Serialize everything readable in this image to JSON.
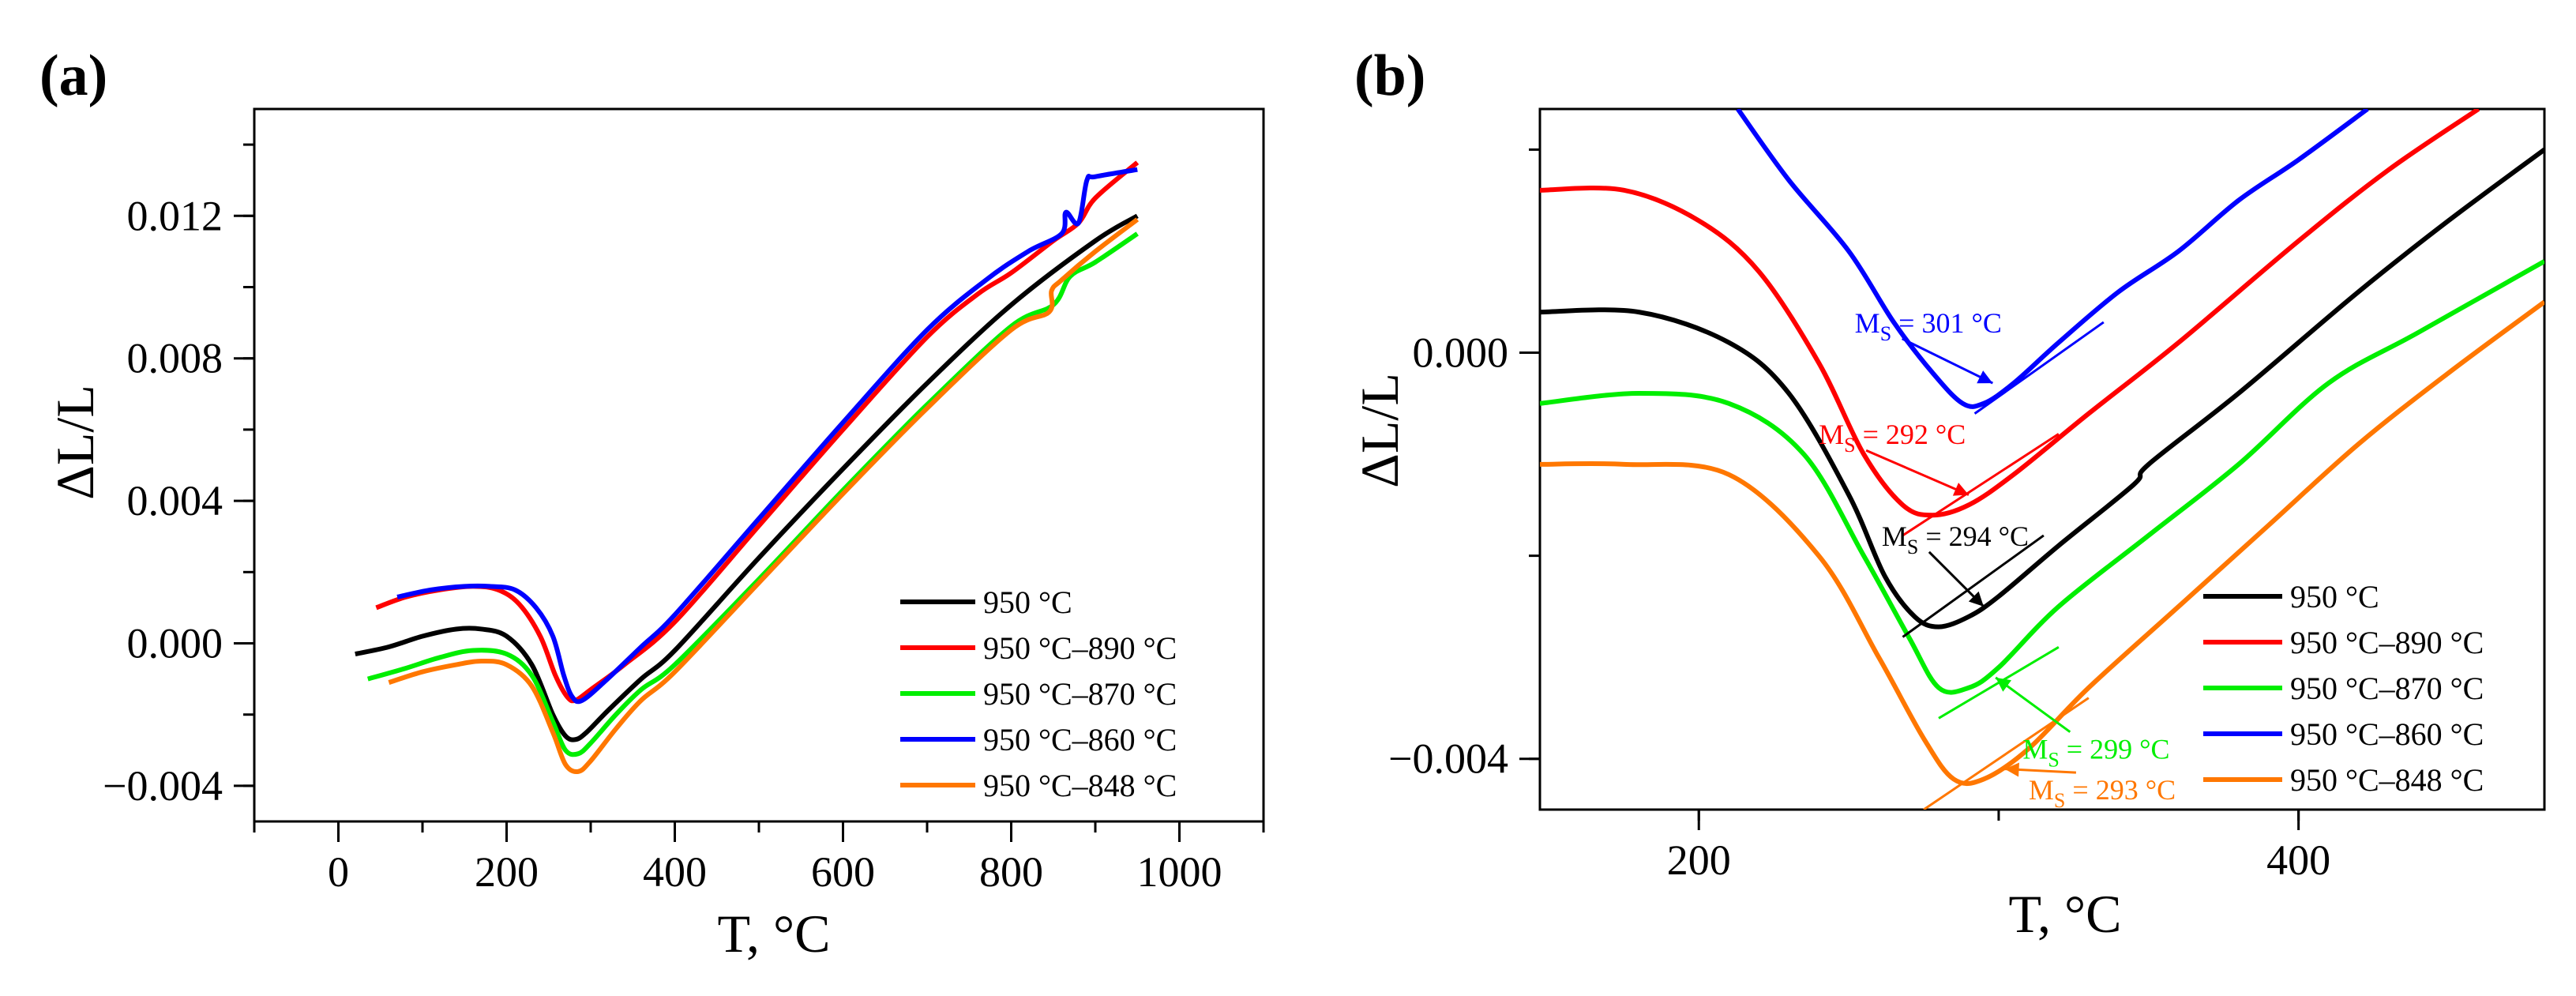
{
  "figure": {
    "panels": [
      "(a)",
      "(b)"
    ]
  },
  "chart_data": [
    {
      "type": "line",
      "panel_label": "(a)",
      "xlabel": "T, °C",
      "ylabel": "ΔL/L",
      "xlim": [
        -100,
        1100
      ],
      "ylim": [
        -0.005,
        0.015
      ],
      "x_ticks": [
        0,
        200,
        400,
        600,
        800,
        1000
      ],
      "x_tick_labels": [
        "0",
        "200",
        "400",
        "600",
        "800",
        "1000"
      ],
      "y_ticks": [
        -0.004,
        0.0,
        0.004,
        0.008,
        0.012
      ],
      "y_tick_labels": [
        "−0.004",
        "0.000",
        "0.004",
        "0.008",
        "0.012"
      ],
      "grid": false,
      "legend_position": "bottom-right",
      "series": [
        {
          "name": "950 °C",
          "color": "#000000",
          "x": [
            20,
            60,
            100,
            140,
            170,
            200,
            230,
            255,
            270,
            282,
            295,
            320,
            360,
            400,
            500,
            600,
            700,
            800,
            900,
            950
          ],
          "y": [
            -0.0003,
            -0.0001,
            0.0002,
            0.0004,
            0.0004,
            0.0002,
            -0.0006,
            -0.002,
            -0.0026,
            -0.0027,
            -0.0025,
            -0.0019,
            -0.001,
            -0.0002,
            0.0024,
            0.0049,
            0.0073,
            0.0095,
            0.0113,
            0.012
          ]
        },
        {
          "name": "950 °C–890 °C",
          "color": "#ff0000",
          "x": [
            45,
            80,
            120,
            160,
            190,
            215,
            240,
            258,
            272,
            282,
            300,
            340,
            400,
            500,
            600,
            700,
            760,
            800,
            850,
            880,
            900,
            950
          ],
          "y": [
            0.001,
            0.0013,
            0.0015,
            0.0016,
            0.0015,
            0.0011,
            0.0002,
            -0.0009,
            -0.0015,
            -0.0016,
            -0.0013,
            -0.0006,
            0.0006,
            0.0033,
            0.006,
            0.0086,
            0.0098,
            0.0104,
            0.0113,
            0.0118,
            0.0125,
            0.0135
          ]
        },
        {
          "name": "950 °C–870 °C",
          "color": "#00ee00",
          "x": [
            35,
            80,
            120,
            160,
            200,
            230,
            255,
            270,
            285,
            300,
            330,
            360,
            400,
            500,
            600,
            700,
            800,
            850,
            870,
            900,
            950
          ],
          "y": [
            -0.001,
            -0.0007,
            -0.0004,
            -0.0002,
            -0.0003,
            -0.0009,
            -0.0022,
            -0.003,
            -0.0031,
            -0.0028,
            -0.002,
            -0.0013,
            -0.0006,
            0.0018,
            0.0043,
            0.0067,
            0.0089,
            0.0095,
            0.0103,
            0.0107,
            0.0115
          ]
        },
        {
          "name": "950 °C–860 °C",
          "color": "#0000ff",
          "x": [
            70,
            110,
            150,
            180,
            210,
            235,
            255,
            268,
            278,
            290,
            320,
            360,
            400,
            500,
            600,
            700,
            770,
            820,
            860,
            865,
            880,
            890,
            900,
            950
          ],
          "y": [
            0.0013,
            0.0015,
            0.0016,
            0.0016,
            0.0015,
            0.001,
            0.0002,
            -0.0009,
            -0.0015,
            -0.0016,
            -0.001,
            -0.0001,
            0.0008,
            0.0035,
            0.0062,
            0.0088,
            0.0102,
            0.011,
            0.0115,
            0.0121,
            0.0118,
            0.013,
            0.0131,
            0.0133
          ]
        },
        {
          "name": "950 °C–848 °C",
          "color": "#ff7700",
          "x": [
            60,
            100,
            140,
            170,
            200,
            230,
            255,
            270,
            285,
            300,
            330,
            360,
            400,
            500,
            600,
            700,
            800,
            845,
            848,
            860,
            900,
            950
          ],
          "y": [
            -0.0011,
            -0.0008,
            -0.0006,
            -0.0005,
            -0.0006,
            -0.0012,
            -0.0025,
            -0.0034,
            -0.0036,
            -0.0033,
            -0.0024,
            -0.0016,
            -0.0008,
            0.0017,
            0.0042,
            0.0066,
            0.0088,
            0.0093,
            0.0099,
            0.0102,
            0.011,
            0.0119
          ]
        }
      ]
    },
    {
      "type": "line",
      "panel_label": "(b)",
      "xlabel": "T, °C",
      "ylabel": "ΔL/L",
      "xlim": [
        147,
        482
      ],
      "ylim": [
        -0.0045,
        0.0024
      ],
      "x_ticks": [
        200,
        400
      ],
      "x_tick_labels": [
        "200",
        "400"
      ],
      "y_ticks": [
        -0.004,
        0.0
      ],
      "y_tick_labels": [
        "−0.004",
        "0.000"
      ],
      "grid": false,
      "legend_position": "bottom-right",
      "series": [
        {
          "name": "950 °C",
          "color": "#000000",
          "x": [
            147,
            180,
            210,
            230,
            250,
            262,
            272,
            280,
            290,
            300,
            320,
            345,
            350,
            380,
            420,
            450,
            482
          ],
          "y": [
            0.0004,
            0.0004,
            0.0001,
            -0.0004,
            -0.0014,
            -0.0022,
            -0.0026,
            -0.0027,
            -0.0026,
            -0.0024,
            -0.0019,
            -0.0013,
            -0.0011,
            -0.0004,
            0.0006,
            0.0013,
            0.002
          ]
        },
        {
          "name": "950 °C–890 °C",
          "color": "#ff0000",
          "x": [
            147,
            175,
            200,
            220,
            240,
            255,
            268,
            278,
            290,
            305,
            330,
            360,
            400,
            430,
            460
          ],
          "y": [
            0.0016,
            0.0016,
            0.0013,
            0.0008,
            -0.0001,
            -0.001,
            -0.0015,
            -0.0016,
            -0.0015,
            -0.0012,
            -0.0006,
            0.0001,
            0.0011,
            0.0018,
            0.0024
          ]
        },
        {
          "name": "950 °C–870 °C",
          "color": "#00ee00",
          "x": [
            147,
            180,
            210,
            235,
            255,
            270,
            280,
            290,
            300,
            320,
            350,
            380,
            410,
            440,
            482
          ],
          "y": [
            -0.0005,
            -0.0004,
            -0.0005,
            -0.001,
            -0.002,
            -0.0028,
            -0.0033,
            -0.0033,
            -0.0031,
            -0.0025,
            -0.0018,
            -0.0011,
            -0.0003,
            0.0002,
            0.0009
          ]
        },
        {
          "name": "950 °C–860 °C",
          "color": "#0000ff",
          "x": [
            213,
            230,
            250,
            265,
            278,
            288,
            295,
            305,
            320,
            340,
            360,
            380,
            400,
            423
          ],
          "y": [
            0.0024,
            0.0017,
            0.001,
            0.0003,
            -0.0002,
            -0.0005,
            -0.0005,
            -0.0003,
            0.0001,
            0.0006,
            0.001,
            0.0015,
            0.0019,
            0.0024
          ]
        },
        {
          "name": "950 °C–848 °C",
          "color": "#ff7700",
          "x": [
            147,
            175,
            210,
            240,
            260,
            275,
            285,
            295,
            310,
            330,
            360,
            390,
            420,
            450,
            482
          ],
          "y": [
            -0.0011,
            -0.0011,
            -0.0012,
            -0.002,
            -0.003,
            -0.0038,
            -0.0042,
            -0.0042,
            -0.0039,
            -0.0033,
            -0.0025,
            -0.0017,
            -0.0009,
            -0.0002,
            0.0005
          ]
        }
      ],
      "annotations": [
        {
          "label_main": "M",
          "label_sub": "S",
          "label_rest": " = 301 °C",
          "color": "#0000ff",
          "x": 252,
          "y": 0.0002,
          "arrow_to": [
            298,
            -0.0003
          ]
        },
        {
          "label_main": "M",
          "label_sub": "S",
          "label_rest": " = 292 °C",
          "color": "#ff0000",
          "x": 240,
          "y": -0.0009,
          "arrow_to": [
            290,
            -0.0014
          ]
        },
        {
          "label_main": "M",
          "label_sub": "S",
          "label_rest": " = 294 °C",
          "color": "#000000",
          "x": 261,
          "y": -0.0019,
          "arrow_to": [
            295,
            -0.0025
          ]
        },
        {
          "label_main": "M",
          "label_sub": "S",
          "label_rest": " = 299 °C",
          "color": "#00ee00",
          "x": 308,
          "y": -0.004,
          "arrow_to": [
            299,
            -0.0032
          ]
        },
        {
          "label_main": "M",
          "label_sub": "S",
          "label_rest": " = 293 °C",
          "color": "#ff7700",
          "x": 310,
          "y": -0.0044,
          "arrow_to": [
            302,
            -0.0041
          ]
        }
      ],
      "tangent_lines": [
        {
          "color": "#0000ff",
          "x": [
            292,
            335
          ],
          "y": [
            -0.0006,
            0.0003
          ]
        },
        {
          "color": "#ff0000",
          "x": [
            268,
            320
          ],
          "y": [
            -0.0018,
            -0.0008
          ]
        },
        {
          "color": "#000000",
          "x": [
            268,
            315
          ],
          "y": [
            -0.0028,
            -0.0018
          ]
        },
        {
          "color": "#00ee00",
          "x": [
            280,
            320
          ],
          "y": [
            -0.0036,
            -0.0029
          ]
        },
        {
          "color": "#ff7700",
          "x": [
            275,
            330
          ],
          "y": [
            -0.0045,
            -0.0034
          ]
        }
      ]
    }
  ]
}
